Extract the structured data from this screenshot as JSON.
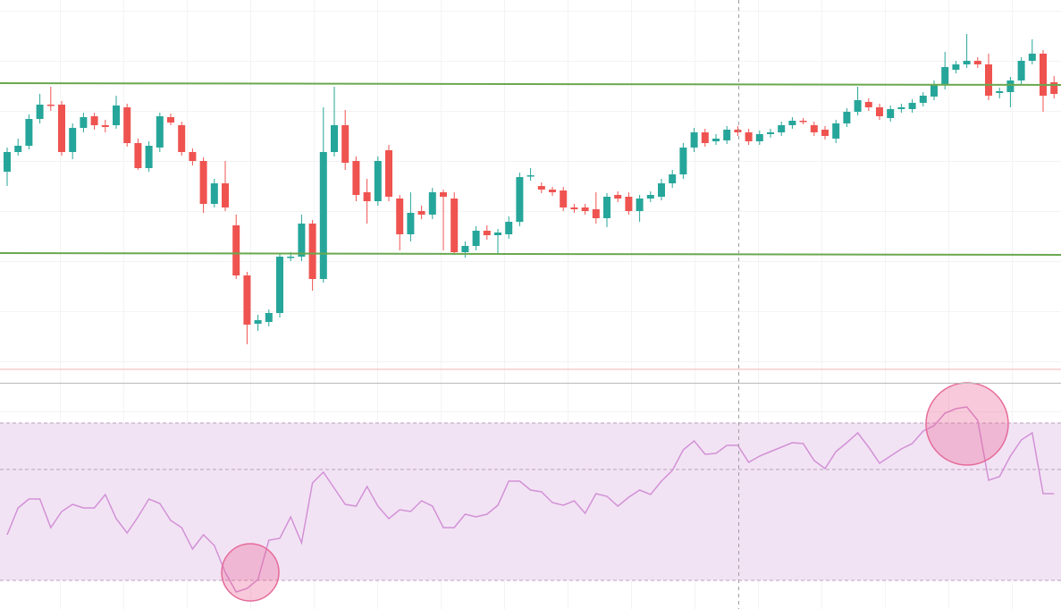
{
  "chart_data": [
    {
      "type": "candlestick",
      "ylim": [
        -5,
        410
      ],
      "up_color": "#26a69a",
      "down_color": "#ef5350",
      "open": [
        218,
        240,
        247,
        277,
        293,
        293,
        240,
        267,
        280,
        270,
        270,
        290,
        250,
        222,
        245,
        279,
        270,
        240,
        230,
        182,
        205,
        158,
        102,
        48,
        50,
        60,
        122,
        123,
        160,
        98,
        240,
        270,
        230,
        195,
        185,
        242,
        188,
        148,
        174,
        170,
        195,
        188,
        128,
        135,
        152,
        147,
        148,
        162,
        213,
        202,
        198,
        197,
        178,
        178,
        176,
        166,
        192,
        190,
        174,
        188,
        190,
        205,
        215,
        245,
        262,
        252,
        253,
        265,
        262,
        252,
        260,
        262,
        270,
        275,
        270,
        265,
        255,
        272,
        285,
        296,
        290,
        278,
        288,
        288,
        295,
        302,
        315,
        332,
        338,
        342,
        338,
        306,
        307,
        320,
        342,
        350,
        318
      ],
      "high": [
        245,
        255,
        282,
        305,
        313,
        297,
        272,
        284,
        284,
        276,
        303,
        294,
        255,
        252,
        284,
        283,
        274,
        244,
        234,
        210,
        230,
        170,
        106,
        58,
        64,
        127,
        128,
        170,
        164,
        290,
        313,
        287,
        235,
        210,
        235,
        248,
        192,
        195,
        180,
        200,
        198,
        195,
        140,
        157,
        158,
        154,
        168,
        217,
        222,
        206,
        201,
        201,
        182,
        182,
        195,
        194,
        196,
        195,
        192,
        196,
        210,
        220,
        250,
        267,
        266,
        260,
        269,
        269,
        266,
        264,
        266,
        274,
        279,
        278,
        274,
        269,
        276,
        289,
        313,
        300,
        294,
        292,
        294,
        299,
        307,
        320,
        352,
        342,
        372,
        346,
        350,
        312,
        324,
        346,
        366,
        354,
        325
      ],
      "low": [
        202,
        236,
        243,
        272,
        286,
        236,
        232,
        262,
        265,
        262,
        266,
        246,
        220,
        218,
        240,
        270,
        236,
        225,
        172,
        178,
        174,
        98,
        25,
        40,
        45,
        55,
        118,
        118,
        85,
        94,
        235,
        220,
        185,
        160,
        180,
        185,
        130,
        140,
        165,
        165,
        130,
        125,
        122,
        130,
        142,
        125,
        143,
        157,
        208,
        194,
        191,
        174,
        172,
        170,
        160,
        156,
        184,
        170,
        162,
        184,
        186,
        200,
        210,
        240,
        246,
        248,
        249,
        258,
        248,
        248,
        256,
        258,
        266,
        271,
        258,
        254,
        250,
        268,
        281,
        286,
        276,
        274,
        284,
        284,
        291,
        298,
        310,
        328,
        334,
        334,
        298,
        300,
        290,
        315,
        338,
        285,
        300
      ],
      "close": [
        240,
        247,
        277,
        293,
        292,
        240,
        267,
        279,
        270,
        268,
        292,
        250,
        222,
        247,
        280,
        273,
        240,
        230,
        182,
        205,
        178,
        102,
        47,
        52,
        60,
        123,
        123,
        160,
        98,
        240,
        270,
        228,
        192,
        185,
        230,
        190,
        148,
        172,
        170,
        195,
        190,
        128,
        135,
        152,
        147,
        150,
        162,
        212,
        214,
        198,
        195,
        178,
        176,
        174,
        166,
        190,
        188,
        174,
        188,
        192,
        205,
        215,
        245,
        262,
        250,
        255,
        265,
        262,
        252,
        260,
        262,
        270,
        275,
        274,
        262,
        258,
        272,
        285,
        298,
        290,
        280,
        288,
        290,
        295,
        303,
        315,
        335,
        338,
        342,
        338,
        303,
        308,
        320,
        342,
        350,
        303,
        305
      ],
      "trend_lines": [
        {
          "color": "#6aa84f",
          "values": [
            317,
            315
          ]
        },
        {
          "color": "#6aa84f",
          "values": [
            127,
            125
          ]
        }
      ],
      "hlines": [
        {
          "color": "#f6b3b3",
          "value": -3
        }
      ]
    },
    {
      "type": "line",
      "ylim": [
        0,
        251
      ],
      "color": "#d291d6",
      "band_color": "#f2e3f4",
      "level_color": "#b9a0bd",
      "levels": [
        208,
        156,
        32
      ],
      "values": [
        83,
        113,
        123,
        123,
        91,
        109,
        117,
        113,
        113,
        128,
        101,
        85,
        103,
        123,
        118,
        99,
        91,
        67,
        83,
        71,
        41,
        19,
        23,
        33,
        77,
        79,
        103,
        74,
        141,
        153,
        135,
        117,
        115,
        137,
        115,
        101,
        111,
        109,
        121,
        115,
        91,
        91,
        106,
        103,
        106,
        116,
        143,
        143,
        133,
        131,
        119,
        116,
        121,
        107,
        129,
        126,
        115,
        125,
        133,
        128,
        143,
        155,
        178,
        188,
        173,
        174,
        183,
        183,
        164,
        171,
        176,
        181,
        186,
        185,
        166,
        157,
        176,
        186,
        197,
        181,
        163,
        171,
        179,
        185,
        199,
        205,
        219,
        224,
        226,
        211,
        144,
        148,
        171,
        189,
        197,
        129,
        129
      ]
    }
  ]
}
